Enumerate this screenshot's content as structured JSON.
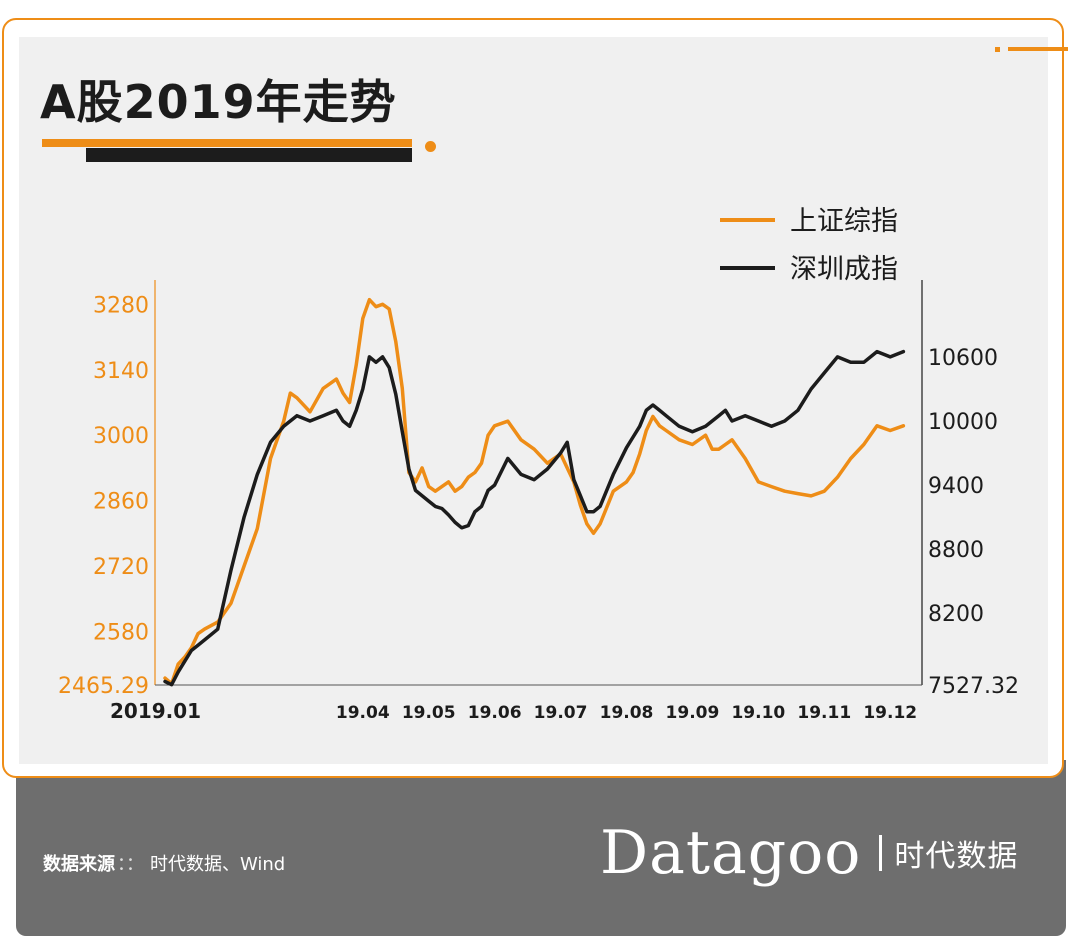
{
  "title": "A股2019年走势",
  "colors": {
    "accent": "#ee8d17",
    "dark": "#1c1c1c",
    "panel": "#f0f0f0",
    "footer": "#6e6e6e"
  },
  "footer": {
    "source_label": "数据来源",
    "source_colon": "：：",
    "source_value": "时代数据、Wind",
    "brand_name": "Datagoo",
    "brand_cn": "时代数据"
  },
  "chart_data": {
    "type": "line",
    "legend_position": "top-right",
    "grid": false,
    "x_tick_labels": [
      "2019.01",
      "19.04",
      "19.05",
      "19.06",
      "19.07",
      "19.08",
      "19.09",
      "19.10",
      "19.11",
      "19.12"
    ],
    "x_tick_months": [
      0,
      3,
      4,
      5,
      6,
      7,
      8,
      9,
      10,
      11
    ],
    "x_range_months": [
      0,
      11.3
    ],
    "left_axis": {
      "ticks": [
        "2465.29",
        "2580",
        "2720",
        "2860",
        "3000",
        "3140",
        "3280"
      ],
      "ylim": [
        2465.29,
        3300
      ]
    },
    "right_axis": {
      "ticks": [
        "7527.32",
        "8200",
        "8800",
        "9400",
        "10000",
        "10600"
      ],
      "ylim": [
        7527.32,
        11180
      ]
    },
    "series": [
      {
        "name": "上证综指",
        "axis": "left",
        "color": "#ee8d17",
        "x": [
          0,
          0.1,
          0.2,
          0.3,
          0.4,
          0.5,
          0.6,
          0.8,
          1.0,
          1.2,
          1.4,
          1.6,
          1.8,
          1.9,
          2.0,
          2.2,
          2.4,
          2.6,
          2.7,
          2.8,
          2.9,
          3.0,
          3.1,
          3.2,
          3.3,
          3.4,
          3.5,
          3.6,
          3.7,
          3.8,
          3.9,
          4.0,
          4.1,
          4.2,
          4.3,
          4.4,
          4.5,
          4.6,
          4.7,
          4.8,
          4.9,
          5.0,
          5.2,
          5.4,
          5.6,
          5.8,
          6.0,
          6.1,
          6.2,
          6.3,
          6.4,
          6.5,
          6.6,
          6.8,
          7.0,
          7.1,
          7.2,
          7.3,
          7.4,
          7.5,
          7.6,
          7.8,
          8.0,
          8.2,
          8.3,
          8.4,
          8.5,
          8.6,
          8.8,
          9.0,
          9.2,
          9.4,
          9.6,
          9.8,
          10.0,
          10.2,
          10.4,
          10.6,
          10.8,
          11.0,
          11.2
        ],
        "values": [
          2480,
          2468,
          2510,
          2525,
          2545,
          2575,
          2585,
          2600,
          2640,
          2720,
          2800,
          2950,
          3030,
          3090,
          3080,
          3050,
          3100,
          3120,
          3090,
          3070,
          3150,
          3250,
          3290,
          3275,
          3280,
          3270,
          3200,
          3100,
          2920,
          2900,
          2930,
          2890,
          2880,
          2890,
          2900,
          2880,
          2890,
          2910,
          2920,
          2940,
          3000,
          3020,
          3030,
          2990,
          2970,
          2940,
          2960,
          2930,
          2900,
          2850,
          2810,
          2790,
          2810,
          2880,
          2900,
          2920,
          2960,
          3010,
          3040,
          3020,
          3010,
          2990,
          2980,
          3000,
          2970,
          2970,
          2980,
          2990,
          2950,
          2900,
          2890,
          2880,
          2875,
          2870,
          2880,
          2910,
          2950,
          2980,
          3020,
          3010,
          3020
        ]
      },
      {
        "name": "深圳成指",
        "axis": "right",
        "color": "#1c1c1c",
        "x": [
          0,
          0.1,
          0.2,
          0.3,
          0.4,
          0.5,
          0.6,
          0.8,
          1.0,
          1.2,
          1.4,
          1.6,
          1.8,
          1.9,
          2.0,
          2.2,
          2.4,
          2.6,
          2.7,
          2.8,
          2.9,
          3.0,
          3.1,
          3.2,
          3.3,
          3.4,
          3.5,
          3.6,
          3.7,
          3.8,
          3.9,
          4.0,
          4.1,
          4.2,
          4.3,
          4.4,
          4.5,
          4.6,
          4.7,
          4.8,
          4.9,
          5.0,
          5.2,
          5.4,
          5.6,
          5.8,
          6.0,
          6.1,
          6.2,
          6.3,
          6.4,
          6.5,
          6.6,
          6.8,
          7.0,
          7.1,
          7.2,
          7.3,
          7.4,
          7.5,
          7.6,
          7.8,
          8.0,
          8.2,
          8.3,
          8.4,
          8.5,
          8.6,
          8.8,
          9.0,
          9.2,
          9.4,
          9.6,
          9.8,
          10.0,
          10.2,
          10.4,
          10.6,
          10.8,
          11.0,
          11.2
        ],
        "values": [
          7560,
          7530,
          7650,
          7750,
          7850,
          7900,
          7950,
          8050,
          8600,
          9100,
          9500,
          9800,
          9950,
          10000,
          10050,
          10000,
          10050,
          10100,
          10000,
          9950,
          10100,
          10300,
          10600,
          10550,
          10600,
          10500,
          10250,
          9900,
          9550,
          9350,
          9300,
          9250,
          9200,
          9180,
          9120,
          9050,
          9000,
          9020,
          9150,
          9200,
          9350,
          9400,
          9650,
          9500,
          9450,
          9550,
          9700,
          9800,
          9450,
          9300,
          9150,
          9150,
          9200,
          9500,
          9750,
          9850,
          9950,
          10100,
          10150,
          10100,
          10050,
          9950,
          9900,
          9950,
          10000,
          10050,
          10100,
          10000,
          10050,
          10000,
          9950,
          10000,
          10100,
          10300,
          10450,
          10600,
          10550,
          10550,
          10650,
          10600,
          10650
        ]
      }
    ]
  }
}
